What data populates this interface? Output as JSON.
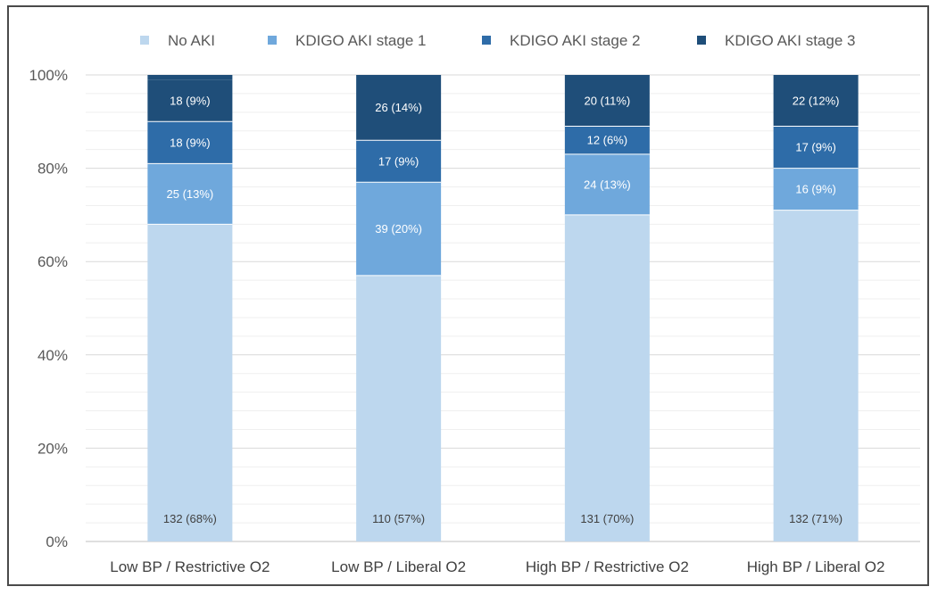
{
  "chart_data": {
    "type": "bar",
    "stacked": true,
    "percent_stacked": true,
    "categories": [
      "Low BP / Restrictive O2",
      "Low BP / Liberal O2",
      "High BP / Restrictive O2",
      "High BP / Liberal O2"
    ],
    "series": [
      {
        "name": "No AKI",
        "color": "#bdd7ee",
        "values": [
          68,
          57,
          70,
          71
        ],
        "labels": [
          "132 (68%)",
          "110 (57%)",
          "131 (70%)",
          "132 (71%)"
        ]
      },
      {
        "name": "KDIGO AKI stage 1",
        "color": "#6fa8dc",
        "values": [
          13,
          20,
          13,
          9
        ],
        "labels": [
          "25 (13%)",
          "39 (20%)",
          "24 (13%)",
          "16 (9%)"
        ]
      },
      {
        "name": "KDIGO AKI stage 2",
        "color": "#2e6ca8",
        "values": [
          9,
          9,
          6,
          9
        ],
        "labels": [
          "18 (9%)",
          "17 (9%)",
          "12 (6%)",
          "17 (9%)"
        ]
      },
      {
        "name": "KDIGO AKI stage 3",
        "color": "#1f4e79",
        "values": [
          9,
          14,
          11,
          12
        ],
        "labels": [
          "18 (9%)",
          "26 (14%)",
          "20 (11%)",
          "22 (12%)"
        ]
      }
    ],
    "yticks": [
      "0%",
      "20%",
      "40%",
      "60%",
      "80%",
      "100%"
    ],
    "ylim": [
      0,
      100
    ],
    "title": "",
    "xlabel": "",
    "ylabel": "",
    "legend_position": "top",
    "grid": true
  }
}
